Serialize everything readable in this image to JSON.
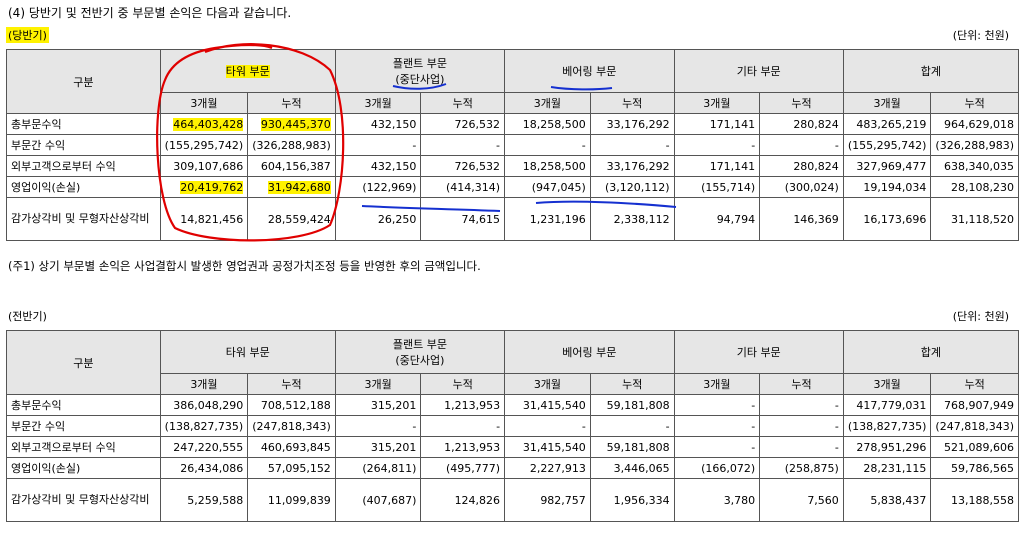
{
  "heading": "(4) 당반기 및 전반기 중 부문별 손익은 다음과 같습니다.",
  "note": "(주1) 상기 부문별 손익은 사업결합시 발생한 영업권과 공정가치조정 등을 반영한 후의 금액입니다.",
  "columns": {
    "category": "구분",
    "segments": [
      {
        "name": "타워 부문",
        "sub": ""
      },
      {
        "name": "플랜트 부문",
        "sub": "(중단사업)"
      },
      {
        "name": "베어링 부문",
        "sub": ""
      },
      {
        "name": "기타 부문",
        "sub": ""
      },
      {
        "name": "합계",
        "sub": ""
      }
    ],
    "three_month": "3개월",
    "cumulative": "누적"
  },
  "current": {
    "period": "(당반기)",
    "unit": "(단위: 천원)",
    "rows": [
      {
        "label": "총부문수익",
        "values": [
          "464,403,428",
          "930,445,370",
          "432,150",
          "726,532",
          "18,258,500",
          "33,176,292",
          "171,141",
          "280,824",
          "483,265,219",
          "964,629,018"
        ]
      },
      {
        "label": "부문간 수익",
        "values": [
          "(155,295,742)",
          "(326,288,983)",
          "-",
          "-",
          "-",
          "-",
          "-",
          "-",
          "(155,295,742)",
          "(326,288,983)"
        ]
      },
      {
        "label": "외부고객으로부터 수익",
        "values": [
          "309,107,686",
          "604,156,387",
          "432,150",
          "726,532",
          "18,258,500",
          "33,176,292",
          "171,141",
          "280,824",
          "327,969,477",
          "638,340,035"
        ]
      },
      {
        "label": "영업이익(손실)",
        "values": [
          "20,419,762",
          "31,942,680",
          "(122,969)",
          "(414,314)",
          "(947,045)",
          "(3,120,112)",
          "(155,714)",
          "(300,024)",
          "19,194,034",
          "28,108,230"
        ]
      },
      {
        "label": "감가상각비 및 무형자산상각비",
        "values": [
          "14,821,456",
          "28,559,424",
          "26,250",
          "74,615",
          "1,231,196",
          "2,338,112",
          "94,794",
          "146,369",
          "16,173,696",
          "31,118,520"
        ]
      }
    ]
  },
  "prior": {
    "period": "(전반기)",
    "unit": "(단위: 천원)",
    "rows": [
      {
        "label": "총부문수익",
        "values": [
          "386,048,290",
          "708,512,188",
          "315,201",
          "1,213,953",
          "31,415,540",
          "59,181,808",
          "-",
          "-",
          "417,779,031",
          "768,907,949"
        ]
      },
      {
        "label": "부문간 수익",
        "values": [
          "(138,827,735)",
          "(247,818,343)",
          "-",
          "-",
          "-",
          "-",
          "-",
          "-",
          "(138,827,735)",
          "(247,818,343)"
        ]
      },
      {
        "label": "외부고객으로부터 수익",
        "values": [
          "247,220,555",
          "460,693,845",
          "315,201",
          "1,213,953",
          "31,415,540",
          "59,181,808",
          "-",
          "-",
          "278,951,296",
          "521,089,606"
        ]
      },
      {
        "label": "영업이익(손실)",
        "values": [
          "26,434,086",
          "57,095,152",
          "(264,811)",
          "(495,777)",
          "2,227,913",
          "3,446,065",
          "(166,072)",
          "(258,875)",
          "28,231,115",
          "59,786,565"
        ]
      },
      {
        "label": "감가상각비 및 무형자산상각비",
        "values": [
          "5,259,588",
          "11,099,839",
          "(407,687)",
          "124,826",
          "982,757",
          "1,956,334",
          "3,780",
          "7,560",
          "5,838,437",
          "13,188,558"
        ]
      }
    ]
  }
}
